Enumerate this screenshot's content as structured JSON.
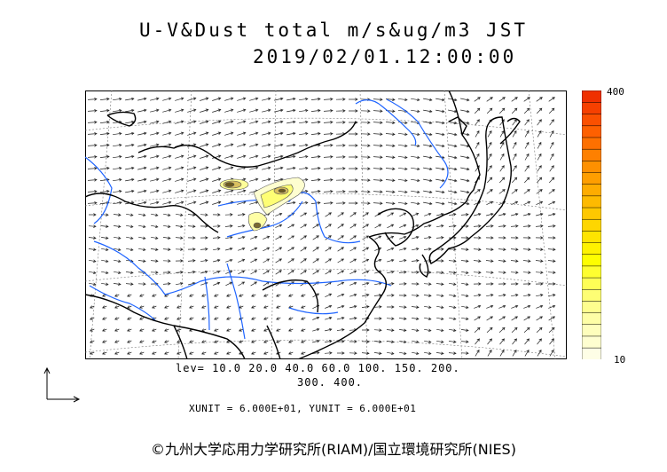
{
  "header": {
    "title": "U-V&Dust total m/s&ug/m3 JST",
    "datetime": "2019/02/01.12:00:00"
  },
  "legend": {
    "max_label": "400",
    "min_label": "10",
    "colors": [
      "#fefee6",
      "#fefed0",
      "#fefebc",
      "#fefea6",
      "#fefe8e",
      "#fefe74",
      "#fefe56",
      "#fefe30",
      "#fefe00",
      "#fef200",
      "#fee400",
      "#fed600",
      "#fec800",
      "#feba00",
      "#feac00",
      "#fe9e00",
      "#fe9000",
      "#fe8000",
      "#fe7000",
      "#fe6000",
      "#fb5000",
      "#f64000",
      "#ef3000"
    ]
  },
  "levels": {
    "line1": "lev= 10.0 20.0 40.0 60.0 100. 150. 200.",
    "line2": "300. 400."
  },
  "units_text": "XUNIT = 6.000E+01, YUNIT = 6.000E+01",
  "footer": "©九州大学応用力学研究所(RIAM)/国立環境研究所(NIES)",
  "map_colors": {
    "coast": "#000000",
    "river": "#1e64ff",
    "grid": "#666666",
    "arrow": "#000000"
  }
}
